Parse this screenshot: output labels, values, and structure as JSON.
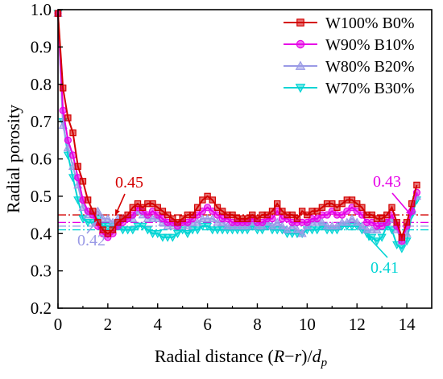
{
  "chart_data": {
    "type": "line",
    "title": "",
    "xlabel_parts": [
      "Radial distance (",
      "R",
      "−",
      "r",
      ")/",
      "d",
      "p"
    ],
    "ylabel": "Radial porosity",
    "xlim": [
      0,
      15
    ],
    "ylim": [
      0.2,
      1.0
    ],
    "xticks": [
      0,
      2,
      4,
      6,
      8,
      10,
      12,
      14
    ],
    "yticks": [
      0.2,
      0.3,
      0.4,
      0.5,
      0.6,
      0.7,
      0.8,
      0.9,
      1.0
    ],
    "legend_position": "top-right",
    "series": [
      {
        "name": "W100% B0%",
        "color": "#d40000",
        "marker": "square",
        "mean": 0.45,
        "x": [
          0,
          0.2,
          0.4,
          0.6,
          0.8,
          1.0,
          1.2,
          1.4,
          1.6,
          1.8,
          2.0,
          2.2,
          2.4,
          2.6,
          2.8,
          3.0,
          3.2,
          3.4,
          3.6,
          3.8,
          4.0,
          4.2,
          4.4,
          4.6,
          4.8,
          5.0,
          5.2,
          5.4,
          5.6,
          5.8,
          6.0,
          6.2,
          6.4,
          6.6,
          6.8,
          7.0,
          7.2,
          7.4,
          7.6,
          7.8,
          8.0,
          8.2,
          8.4,
          8.6,
          8.8,
          9.0,
          9.2,
          9.4,
          9.6,
          9.8,
          10.0,
          10.2,
          10.4,
          10.6,
          10.8,
          11.0,
          11.2,
          11.4,
          11.6,
          11.8,
          12.0,
          12.2,
          12.4,
          12.6,
          12.8,
          13.0,
          13.2,
          13.4,
          13.6,
          13.8,
          14.0,
          14.2,
          14.4
        ],
        "y": [
          0.99,
          0.79,
          0.71,
          0.67,
          0.58,
          0.54,
          0.49,
          0.46,
          0.43,
          0.41,
          0.4,
          0.41,
          0.43,
          0.44,
          0.45,
          0.47,
          0.48,
          0.47,
          0.48,
          0.48,
          0.47,
          0.46,
          0.45,
          0.44,
          0.43,
          0.44,
          0.45,
          0.45,
          0.47,
          0.49,
          0.5,
          0.49,
          0.47,
          0.46,
          0.45,
          0.45,
          0.44,
          0.44,
          0.44,
          0.45,
          0.44,
          0.45,
          0.45,
          0.46,
          0.48,
          0.46,
          0.45,
          0.45,
          0.44,
          0.46,
          0.45,
          0.46,
          0.46,
          0.47,
          0.48,
          0.48,
          0.47,
          0.48,
          0.49,
          0.49,
          0.48,
          0.47,
          0.45,
          0.45,
          0.44,
          0.44,
          0.45,
          0.47,
          0.43,
          0.39,
          0.43,
          0.48,
          0.53
        ]
      },
      {
        "name": "W90% B10%",
        "color": "#e600e6",
        "marker": "circle",
        "mean": 0.43,
        "x": [
          0,
          0.2,
          0.4,
          0.6,
          0.8,
          1.0,
          1.2,
          1.4,
          1.6,
          1.8,
          2.0,
          2.2,
          2.4,
          2.6,
          2.8,
          3.0,
          3.2,
          3.4,
          3.6,
          3.8,
          4.0,
          4.2,
          4.4,
          4.6,
          4.8,
          5.0,
          5.2,
          5.4,
          5.6,
          5.8,
          6.0,
          6.2,
          6.4,
          6.6,
          6.8,
          7.0,
          7.2,
          7.4,
          7.6,
          7.8,
          8.0,
          8.2,
          8.4,
          8.6,
          8.8,
          9.0,
          9.2,
          9.4,
          9.6,
          9.8,
          10.0,
          10.2,
          10.4,
          10.6,
          10.8,
          11.0,
          11.2,
          11.4,
          11.6,
          11.8,
          12.0,
          12.2,
          12.4,
          12.6,
          12.8,
          13.0,
          13.2,
          13.4,
          13.6,
          13.8,
          14.0,
          14.2,
          14.4
        ],
        "y": [
          0.99,
          0.73,
          0.65,
          0.61,
          0.55,
          0.49,
          0.46,
          0.45,
          0.42,
          0.4,
          0.39,
          0.4,
          0.42,
          0.43,
          0.44,
          0.45,
          0.47,
          0.46,
          0.45,
          0.46,
          0.45,
          0.44,
          0.43,
          0.43,
          0.42,
          0.43,
          0.43,
          0.44,
          0.45,
          0.46,
          0.47,
          0.46,
          0.45,
          0.44,
          0.44,
          0.43,
          0.43,
          0.43,
          0.43,
          0.44,
          0.43,
          0.43,
          0.44,
          0.44,
          0.46,
          0.44,
          0.44,
          0.43,
          0.43,
          0.43,
          0.43,
          0.44,
          0.44,
          0.45,
          0.45,
          0.46,
          0.45,
          0.45,
          0.46,
          0.47,
          0.46,
          0.45,
          0.43,
          0.43,
          0.42,
          0.42,
          0.43,
          0.45,
          0.42,
          0.38,
          0.42,
          0.46,
          0.51
        ]
      },
      {
        "name": "W80% B20%",
        "color": "#9a9ae6",
        "marker": "triangle-up",
        "mean": 0.42,
        "x": [
          0,
          0.2,
          0.4,
          0.6,
          0.8,
          1.0,
          1.2,
          1.4,
          1.6,
          1.8,
          2.0,
          2.2,
          2.4,
          2.6,
          2.8,
          3.0,
          3.2,
          3.4,
          3.6,
          3.8,
          4.0,
          4.2,
          4.4,
          4.6,
          4.8,
          5.0,
          5.2,
          5.4,
          5.6,
          5.8,
          6.0,
          6.2,
          6.4,
          6.6,
          6.8,
          7.0,
          7.2,
          7.4,
          7.6,
          7.8,
          8.0,
          8.2,
          8.4,
          8.6,
          8.8,
          9.0,
          9.2,
          9.4,
          9.6,
          9.8,
          10.0,
          10.2,
          10.4,
          10.6,
          10.8,
          11.0,
          11.2,
          11.4,
          11.6,
          11.8,
          12.0,
          12.2,
          12.4,
          12.6,
          12.8,
          13.0,
          13.2,
          13.4,
          13.6,
          13.8,
          14.0,
          14.2,
          14.4
        ],
        "y": [
          0.99,
          0.69,
          0.63,
          0.58,
          0.53,
          0.47,
          0.45,
          0.45,
          0.46,
          0.44,
          0.44,
          0.43,
          0.44,
          0.44,
          0.44,
          0.44,
          0.46,
          0.45,
          0.44,
          0.44,
          0.44,
          0.43,
          0.42,
          0.42,
          0.42,
          0.43,
          0.42,
          0.43,
          0.43,
          0.44,
          0.44,
          0.44,
          0.43,
          0.43,
          0.42,
          0.42,
          0.42,
          0.42,
          0.42,
          0.43,
          0.42,
          0.42,
          0.43,
          0.42,
          0.43,
          0.42,
          0.41,
          0.42,
          0.41,
          0.4,
          0.42,
          0.43,
          0.43,
          0.43,
          0.42,
          0.42,
          0.42,
          0.43,
          0.43,
          0.44,
          0.43,
          0.42,
          0.41,
          0.41,
          0.41,
          0.43,
          0.43,
          0.44,
          0.41,
          0.38,
          0.4,
          0.46,
          0.5
        ]
      },
      {
        "name": "W70% B30%",
        "color": "#00d4d4",
        "marker": "triangle-down",
        "mean": 0.41,
        "x": [
          0,
          0.2,
          0.4,
          0.6,
          0.8,
          1.0,
          1.2,
          1.4,
          1.6,
          1.8,
          2.0,
          2.2,
          2.4,
          2.6,
          2.8,
          3.0,
          3.2,
          3.4,
          3.6,
          3.8,
          4.0,
          4.2,
          4.4,
          4.6,
          4.8,
          5.0,
          5.2,
          5.4,
          5.6,
          5.8,
          6.0,
          6.2,
          6.4,
          6.6,
          6.8,
          7.0,
          7.2,
          7.4,
          7.6,
          7.8,
          8.0,
          8.2,
          8.4,
          8.6,
          8.8,
          9.0,
          9.2,
          9.4,
          9.6,
          9.8,
          10.0,
          10.2,
          10.4,
          10.6,
          10.8,
          11.0,
          11.2,
          11.4,
          11.6,
          11.8,
          12.0,
          12.2,
          12.4,
          12.6,
          12.8,
          13.0,
          13.2,
          13.4,
          13.6,
          13.8,
          14.0,
          14.2,
          14.4
        ],
        "y": [
          0.99,
          0.7,
          0.61,
          0.55,
          0.49,
          0.44,
          0.43,
          0.43,
          0.44,
          0.42,
          0.42,
          0.42,
          0.42,
          0.41,
          0.41,
          0.41,
          0.42,
          0.42,
          0.41,
          0.4,
          0.4,
          0.39,
          0.39,
          0.39,
          0.4,
          0.41,
          0.4,
          0.41,
          0.41,
          0.42,
          0.42,
          0.41,
          0.41,
          0.41,
          0.41,
          0.41,
          0.41,
          0.41,
          0.41,
          0.42,
          0.41,
          0.41,
          0.42,
          0.41,
          0.41,
          0.41,
          0.4,
          0.4,
          0.4,
          0.4,
          0.41,
          0.41,
          0.41,
          0.42,
          0.41,
          0.41,
          0.41,
          0.42,
          0.42,
          0.42,
          0.42,
          0.41,
          0.4,
          0.39,
          0.38,
          0.39,
          0.42,
          0.41,
          0.37,
          0.36,
          0.38,
          0.45,
          0.49
        ]
      }
    ],
    "annotations": [
      {
        "text": "0.45",
        "color": "#d40000",
        "series": 0
      },
      {
        "text": "0.43",
        "color": "#e600e6",
        "series": 1
      },
      {
        "text": "0.42",
        "color": "#9a9ae6",
        "series": 2
      },
      {
        "text": "0.41",
        "color": "#00d4d4",
        "series": 3
      }
    ]
  }
}
